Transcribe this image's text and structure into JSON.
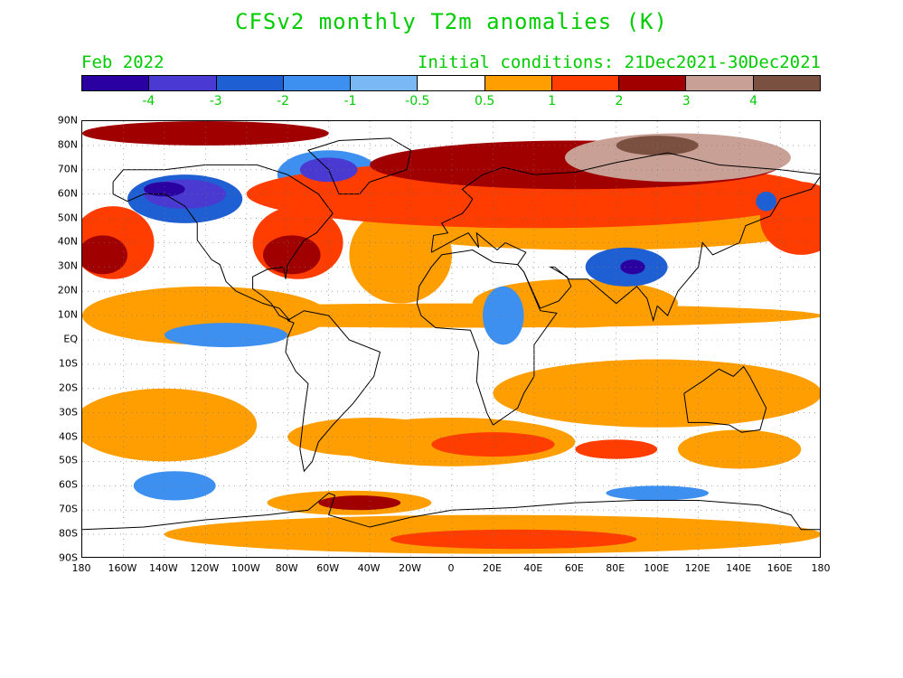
{
  "title": "CFSv2 monthly T2m anomalies (K)",
  "subtitle_left": "Feb 2022",
  "subtitle_right": "Initial conditions: 21Dec2021-30Dec2021",
  "colors": {
    "text_accent": "#00cc00",
    "land_outline": "#000000"
  },
  "colorbar": {
    "colors": [
      "#2a00a0",
      "#4a3ad2",
      "#1f5fd4",
      "#3d8ff0",
      "#7ab8f5",
      "#ffffff",
      "#ff9e00",
      "#ff3d00",
      "#a00000",
      "#c9a096",
      "#7a5040"
    ],
    "labels": [
      "-4",
      "-3",
      "-2",
      "-1",
      "-0.5",
      "0.5",
      "1",
      "2",
      "3",
      "4"
    ]
  },
  "axes": {
    "lat_labels": [
      "90N",
      "80N",
      "70N",
      "60N",
      "50N",
      "40N",
      "30N",
      "20N",
      "10N",
      "EQ",
      "10S",
      "20S",
      "30S",
      "40S",
      "50S",
      "60S",
      "70S",
      "80S",
      "90S"
    ],
    "lon_labels": [
      "180",
      "160W",
      "140W",
      "120W",
      "100W",
      "80W",
      "60W",
      "40W",
      "20W",
      "0",
      "20E",
      "40E",
      "60E",
      "80E",
      "100E",
      "120E",
      "140E",
      "160E",
      "180"
    ],
    "lat_range": [
      -90,
      90
    ],
    "lon_range": [
      -180,
      180
    ],
    "grid": "dotted"
  },
  "anomaly_regions": [
    {
      "level": "warm1",
      "lon": 0,
      "lat": 10,
      "rx": 180,
      "ry": 5
    },
    {
      "level": "warm1",
      "lon": -140,
      "lat": -35,
      "rx": 45,
      "ry": 15
    },
    {
      "level": "warm1",
      "lon": 60,
      "lat": 15,
      "rx": 50,
      "ry": 10
    },
    {
      "level": "warm1",
      "lon": 100,
      "lat": -22,
      "rx": 80,
      "ry": 14
    },
    {
      "level": "warm1",
      "lon": 0,
      "lat": -42,
      "rx": 60,
      "ry": 10
    },
    {
      "level": "warm1",
      "lon": 20,
      "lat": -80,
      "rx": 160,
      "ry": 8
    },
    {
      "level": "warm2",
      "lon": 30,
      "lat": -82,
      "rx": 60,
      "ry": 4
    },
    {
      "level": "warm1",
      "lon": -120,
      "lat": 10,
      "rx": 60,
      "ry": 12
    },
    {
      "level": "warm1",
      "lon": -25,
      "lat": 35,
      "rx": 25,
      "ry": 20
    },
    {
      "level": "warm2",
      "lon": -165,
      "lat": 40,
      "rx": 20,
      "ry": 15
    },
    {
      "level": "warm3",
      "lon": -170,
      "lat": 35,
      "rx": 12,
      "ry": 8
    },
    {
      "level": "warm2",
      "lon": -75,
      "lat": 40,
      "rx": 22,
      "ry": 15
    },
    {
      "level": "warm3",
      "lon": -78,
      "lat": 35,
      "rx": 14,
      "ry": 8
    },
    {
      "level": "warm1",
      "lon": -40,
      "lat": -40,
      "rx": 40,
      "ry": 8
    },
    {
      "level": "warm2",
      "lon": 20,
      "lat": -43,
      "rx": 30,
      "ry": 5
    },
    {
      "level": "warm1",
      "lon": -50,
      "lat": -67,
      "rx": 40,
      "ry": 5
    },
    {
      "level": "warm3",
      "lon": -45,
      "lat": -67,
      "rx": 20,
      "ry": 3
    },
    {
      "level": "warm2",
      "lon": 80,
      "lat": -45,
      "rx": 20,
      "ry": 4
    },
    {
      "level": "warm1",
      "lon": 140,
      "lat": -45,
      "rx": 30,
      "ry": 8
    },
    {
      "level": "warm1",
      "lon": 70,
      "lat": 47,
      "rx": 110,
      "ry": 10
    },
    {
      "level": "warm2",
      "lon": 40,
      "lat": 60,
      "rx": 140,
      "ry": 14
    },
    {
      "level": "warm3",
      "lon": 60,
      "lat": 72,
      "rx": 100,
      "ry": 10
    },
    {
      "level": "warm4",
      "lon": 110,
      "lat": 75,
      "rx": 55,
      "ry": 10
    },
    {
      "level": "warm5",
      "lon": 100,
      "lat": 80,
      "rx": 20,
      "ry": 4
    },
    {
      "level": "warm3",
      "lon": -120,
      "lat": 85,
      "rx": 60,
      "ry": 5
    },
    {
      "level": "warm2",
      "lon": 170,
      "lat": 50,
      "rx": 20,
      "ry": 15
    },
    {
      "level": "cold2",
      "lon": -130,
      "lat": 58,
      "rx": 28,
      "ry": 10
    },
    {
      "level": "cold3",
      "lon": -130,
      "lat": 60,
      "rx": 20,
      "ry": 6
    },
    {
      "level": "cold4",
      "lon": -140,
      "lat": 62,
      "rx": 10,
      "ry": 3
    },
    {
      "level": "cold1",
      "lon": -60,
      "lat": 68,
      "rx": 25,
      "ry": 10
    },
    {
      "level": "cold3",
      "lon": -60,
      "lat": 70,
      "rx": 14,
      "ry": 5
    },
    {
      "level": "cold1",
      "lon": -110,
      "lat": 2,
      "rx": 30,
      "ry": 5
    },
    {
      "level": "cold1",
      "lon": -135,
      "lat": -60,
      "rx": 20,
      "ry": 6
    },
    {
      "level": "cold1",
      "lon": 25,
      "lat": 10,
      "rx": 10,
      "ry": 12
    },
    {
      "level": "cold2",
      "lon": 85,
      "lat": 30,
      "rx": 20,
      "ry": 8
    },
    {
      "level": "cold4",
      "lon": 88,
      "lat": 30,
      "rx": 6,
      "ry": 3
    },
    {
      "level": "cold1",
      "lon": 100,
      "lat": -63,
      "rx": 25,
      "ry": 3
    },
    {
      "level": "cold2",
      "lon": 153,
      "lat": 57,
      "rx": 5,
      "ry": 4
    }
  ]
}
